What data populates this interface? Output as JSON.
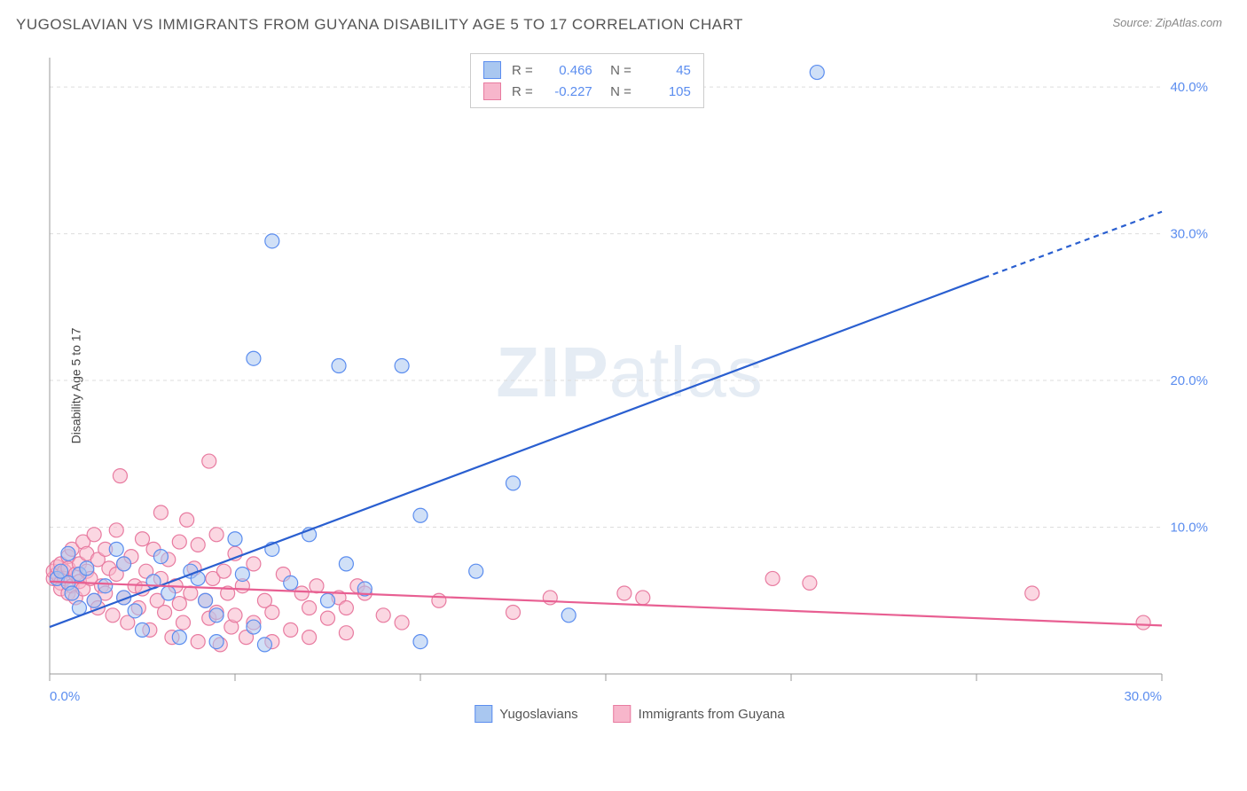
{
  "title": "YUGOSLAVIAN VS IMMIGRANTS FROM GUYANA DISABILITY AGE 5 TO 17 CORRELATION CHART",
  "source": "Source: ZipAtlas.com",
  "y_axis_label": "Disability Age 5 to 17",
  "watermark": {
    "bold": "ZIP",
    "light": "atlas"
  },
  "chart": {
    "type": "scatter-correlation",
    "background_color": "#ffffff",
    "grid_color": "#dddddd",
    "grid_dash": "4 4",
    "axis_line_color": "#999999",
    "x_range": [
      0,
      30
    ],
    "y_range": [
      0,
      42
    ],
    "x_ticks": [
      0,
      5,
      10,
      15,
      20,
      25,
      30
    ],
    "x_tick_labels": {
      "0": "0.0%",
      "30": "30.0%"
    },
    "y_ticks": [
      10,
      20,
      30,
      40
    ],
    "y_tick_labels": {
      "10": "10.0%",
      "20": "20.0%",
      "30": "30.0%",
      "40": "40.0%"
    },
    "y_label_color": "#5b8def",
    "x_label_color": "#5b8def",
    "marker_radius": 8,
    "marker_opacity": 0.55,
    "series": [
      {
        "name": "Yugoslavians",
        "color": "#6fa0e8",
        "fill": "#a9c7f0",
        "stroke": "#5b8def",
        "stats": {
          "R": "0.466",
          "N": "45"
        },
        "trend": {
          "x1": 0,
          "y1": 3.2,
          "x2": 25.2,
          "y2": 27,
          "x2_dash": 30,
          "y2_dash": 31.5,
          "color": "#2a5fd0",
          "width": 2.2
        },
        "points": [
          [
            0.2,
            6.5
          ],
          [
            0.3,
            7.0
          ],
          [
            0.5,
            8.2
          ],
          [
            0.5,
            6.2
          ],
          [
            0.6,
            5.5
          ],
          [
            0.8,
            6.8
          ],
          [
            0.8,
            4.5
          ],
          [
            1.0,
            7.2
          ],
          [
            1.2,
            5.0
          ],
          [
            1.5,
            6.0
          ],
          [
            1.8,
            8.5
          ],
          [
            2.0,
            5.2
          ],
          [
            2.0,
            7.5
          ],
          [
            2.3,
            4.3
          ],
          [
            2.5,
            3.0
          ],
          [
            2.8,
            6.3
          ],
          [
            3.0,
            8.0
          ],
          [
            3.2,
            5.5
          ],
          [
            3.5,
            2.5
          ],
          [
            3.8,
            7.0
          ],
          [
            4.0,
            6.5
          ],
          [
            4.2,
            5.0
          ],
          [
            4.5,
            4.0
          ],
          [
            4.5,
            2.2
          ],
          [
            5.0,
            9.2
          ],
          [
            5.2,
            6.8
          ],
          [
            5.5,
            3.2
          ],
          [
            5.8,
            2.0
          ],
          [
            5.5,
            21.5
          ],
          [
            6.0,
            8.5
          ],
          [
            6.0,
            29.5
          ],
          [
            6.5,
            6.2
          ],
          [
            7.0,
            9.5
          ],
          [
            7.5,
            5.0
          ],
          [
            7.8,
            21.0
          ],
          [
            8.0,
            7.5
          ],
          [
            8.5,
            5.8
          ],
          [
            9.5,
            21.0
          ],
          [
            10.0,
            2.2
          ],
          [
            10.0,
            10.8
          ],
          [
            11.5,
            7.0
          ],
          [
            12.5,
            13.0
          ],
          [
            14.0,
            4.0
          ],
          [
            20.7,
            41.0
          ]
        ]
      },
      {
        "name": "Immigrants from Guyana",
        "color": "#f090b0",
        "fill": "#f7b6cb",
        "stroke": "#e87ba0",
        "stats": {
          "R": "-0.227",
          "N": "105"
        },
        "trend": {
          "x1": 0,
          "y1": 6.3,
          "x2": 30,
          "y2": 3.3,
          "color": "#e85f92",
          "width": 2.2
        },
        "points": [
          [
            0.1,
            6.5
          ],
          [
            0.1,
            7.0
          ],
          [
            0.2,
            6.8
          ],
          [
            0.2,
            7.3
          ],
          [
            0.3,
            6.2
          ],
          [
            0.3,
            7.5
          ],
          [
            0.3,
            5.8
          ],
          [
            0.4,
            7.0
          ],
          [
            0.4,
            6.5
          ],
          [
            0.5,
            8.0
          ],
          [
            0.5,
            5.5
          ],
          [
            0.5,
            7.2
          ],
          [
            0.6,
            6.0
          ],
          [
            0.6,
            8.5
          ],
          [
            0.7,
            6.8
          ],
          [
            0.7,
            5.2
          ],
          [
            0.8,
            7.5
          ],
          [
            0.8,
            6.3
          ],
          [
            0.9,
            9.0
          ],
          [
            0.9,
            5.8
          ],
          [
            1.0,
            7.0
          ],
          [
            1.0,
            8.2
          ],
          [
            1.1,
            6.5
          ],
          [
            1.2,
            5.0
          ],
          [
            1.2,
            9.5
          ],
          [
            1.3,
            7.8
          ],
          [
            1.3,
            4.5
          ],
          [
            1.4,
            6.0
          ],
          [
            1.5,
            8.5
          ],
          [
            1.5,
            5.5
          ],
          [
            1.6,
            7.2
          ],
          [
            1.7,
            4.0
          ],
          [
            1.8,
            6.8
          ],
          [
            1.8,
            9.8
          ],
          [
            1.9,
            13.5
          ],
          [
            2.0,
            5.2
          ],
          [
            2.0,
            7.5
          ],
          [
            2.1,
            3.5
          ],
          [
            2.2,
            8.0
          ],
          [
            2.3,
            6.0
          ],
          [
            2.4,
            4.5
          ],
          [
            2.5,
            9.2
          ],
          [
            2.5,
            5.8
          ],
          [
            2.6,
            7.0
          ],
          [
            2.7,
            3.0
          ],
          [
            2.8,
            8.5
          ],
          [
            2.9,
            5.0
          ],
          [
            3.0,
            6.5
          ],
          [
            3.0,
            11.0
          ],
          [
            3.1,
            4.2
          ],
          [
            3.2,
            7.8
          ],
          [
            3.3,
            2.5
          ],
          [
            3.4,
            6.0
          ],
          [
            3.5,
            9.0
          ],
          [
            3.5,
            4.8
          ],
          [
            3.6,
            3.5
          ],
          [
            3.7,
            10.5
          ],
          [
            3.8,
            5.5
          ],
          [
            3.9,
            7.2
          ],
          [
            4.0,
            2.2
          ],
          [
            4.0,
            8.8
          ],
          [
            4.3,
            14.5
          ],
          [
            4.2,
            5.0
          ],
          [
            4.3,
            3.8
          ],
          [
            4.4,
            6.5
          ],
          [
            4.5,
            9.5
          ],
          [
            4.5,
            4.2
          ],
          [
            4.6,
            2.0
          ],
          [
            4.7,
            7.0
          ],
          [
            4.8,
            5.5
          ],
          [
            4.9,
            3.2
          ],
          [
            5.0,
            8.2
          ],
          [
            5.0,
            4.0
          ],
          [
            5.2,
            6.0
          ],
          [
            5.3,
            2.5
          ],
          [
            5.5,
            7.5
          ],
          [
            5.5,
            3.5
          ],
          [
            5.8,
            5.0
          ],
          [
            6.0,
            4.2
          ],
          [
            6.0,
            2.2
          ],
          [
            6.3,
            6.8
          ],
          [
            6.5,
            3.0
          ],
          [
            6.8,
            5.5
          ],
          [
            7.0,
            4.5
          ],
          [
            7.0,
            2.5
          ],
          [
            7.2,
            6.0
          ],
          [
            7.5,
            3.8
          ],
          [
            7.8,
            5.2
          ],
          [
            8.0,
            2.8
          ],
          [
            8.0,
            4.5
          ],
          [
            8.3,
            6.0
          ],
          [
            8.5,
            5.5
          ],
          [
            9.0,
            4.0
          ],
          [
            9.5,
            3.5
          ],
          [
            10.5,
            5.0
          ],
          [
            12.5,
            4.2
          ],
          [
            13.5,
            5.2
          ],
          [
            15.5,
            5.5
          ],
          [
            16.0,
            5.2
          ],
          [
            19.5,
            6.5
          ],
          [
            20.5,
            6.2
          ],
          [
            26.5,
            5.5
          ],
          [
            29.5,
            3.5
          ]
        ]
      }
    ]
  },
  "legend": {
    "items": [
      {
        "label": "Yugoslavians",
        "swatch_fill": "#a9c7f0",
        "swatch_stroke": "#5b8def"
      },
      {
        "label": "Immigrants from Guyana",
        "swatch_fill": "#f7b6cb",
        "swatch_stroke": "#e87ba0"
      }
    ]
  }
}
